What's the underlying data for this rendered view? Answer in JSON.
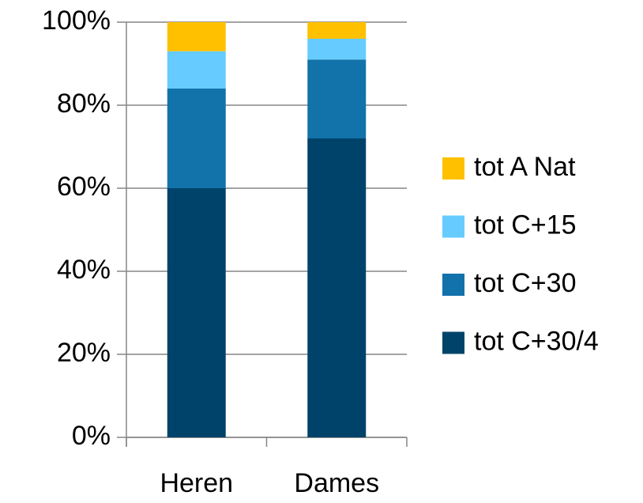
{
  "chart_data": {
    "type": "stacked_bar_100",
    "categories": [
      "Heren",
      "Dames"
    ],
    "series": [
      {
        "name": "tot C+30/4",
        "color": "#00436a",
        "values": [
          60,
          72
        ]
      },
      {
        "name": "tot C+30",
        "color": "#1272aa",
        "values": [
          24,
          19
        ]
      },
      {
        "name": "tot C+15",
        "color": "#66ccff",
        "values": [
          9,
          5
        ]
      },
      {
        "name": "tot A Nat",
        "color": "#ffc000",
        "values": [
          7,
          4
        ]
      }
    ],
    "ylim": [
      0,
      100
    ],
    "yticks": [
      {
        "value": 0,
        "label": "0%"
      },
      {
        "value": 20,
        "label": "20%"
      },
      {
        "value": 40,
        "label": "40%"
      },
      {
        "value": 60,
        "label": "60%"
      },
      {
        "value": 80,
        "label": "80%"
      },
      {
        "value": 100,
        "label": "100%"
      }
    ],
    "grid": true,
    "legend": "right"
  }
}
